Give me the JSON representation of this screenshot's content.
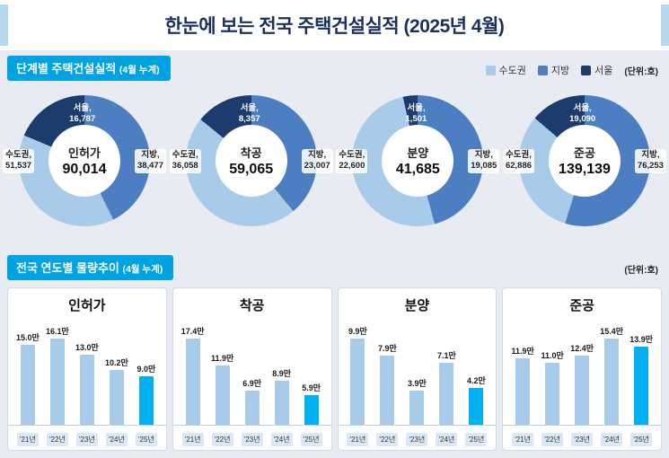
{
  "title": "한눈에 보는 전국 주택건설실적 (2025년 4월)",
  "colors": {
    "sudogwon": "#a7cbe9",
    "jibang": "#4d7ec2",
    "seoul": "#1c3c6e",
    "banner": "#00a3e2",
    "bar_normal": "#a7cbe9",
    "bar_highlight": "#00b0f0"
  },
  "section1": {
    "heading": "단계별 주택건설실적",
    "heading_suffix": "(4월 누계)",
    "unit": "(단위:호)",
    "legend": [
      {
        "label": "수도권"
      },
      {
        "label": "지방"
      },
      {
        "label": "서울"
      }
    ],
    "donuts": [
      {
        "name": "인허가",
        "total": "90,014",
        "seoul_label": "서울,",
        "seoul_value": "16,787",
        "sudogwon_label": "수도권,",
        "sudogwon_value": "51,537",
        "jibang_label": "지방,",
        "jibang_value": "38,477"
      },
      {
        "name": "착공",
        "total": "59,065",
        "seoul_label": "서울,",
        "seoul_value": "8,357",
        "sudogwon_label": "수도권,",
        "sudogwon_value": "36,058",
        "jibang_label": "지방,",
        "jibang_value": "23,007"
      },
      {
        "name": "분양",
        "total": "41,685",
        "seoul_label": "서울,",
        "seoul_value": "1,501",
        "sudogwon_label": "수도권,",
        "sudogwon_value": "22,600",
        "jibang_label": "지방,",
        "jibang_value": "19,085"
      },
      {
        "name": "준공",
        "total": "139,139",
        "seoul_label": "서울,",
        "seoul_value": "19,090",
        "sudogwon_label": "수도권,",
        "sudogwon_value": "62,886",
        "jibang_label": "지방,",
        "jibang_value": "76,253"
      }
    ]
  },
  "section2": {
    "heading": "전국 연도별 물량추이",
    "heading_suffix": "(4월 누계)",
    "unit": "(단위:호)",
    "years": [
      "'21년",
      "'22년",
      "'23년",
      "'24년",
      "'25년"
    ],
    "charts": [
      {
        "title": "인허가",
        "bar_labels": [
          "15.0만",
          "16.1만",
          "13.0만",
          "10.2만",
          "9.0만"
        ],
        "values": [
          15.0,
          16.1,
          13.0,
          10.2,
          9.0
        ]
      },
      {
        "title": "착공",
        "bar_labels": [
          "17.4만",
          "11.9만",
          "6.9만",
          "8.9만",
          "5.9만"
        ],
        "values": [
          17.4,
          11.9,
          6.9,
          8.9,
          5.9
        ]
      },
      {
        "title": "분양",
        "bar_labels": [
          "9.9만",
          "7.9만",
          "3.9만",
          "7.1만",
          "4.2만"
        ],
        "values": [
          9.9,
          7.9,
          3.9,
          7.1,
          4.2
        ]
      },
      {
        "title": "준공",
        "bar_labels": [
          "11.9만",
          "11.0만",
          "12.4만",
          "15.4만",
          "13.9만"
        ],
        "values": [
          11.9,
          11.0,
          12.4,
          15.4,
          13.9
        ]
      }
    ]
  },
  "chart_data": [
    {
      "type": "pie",
      "title": "인허가",
      "total": 90014,
      "segments": [
        {
          "label": "수도권",
          "value": 51537
        },
        {
          "label": "지방",
          "value": 38477
        },
        {
          "label": "서울",
          "value": 16787
        }
      ],
      "unit": "호"
    },
    {
      "type": "pie",
      "title": "착공",
      "total": 59065,
      "segments": [
        {
          "label": "수도권",
          "value": 36058
        },
        {
          "label": "지방",
          "value": 23007
        },
        {
          "label": "서울",
          "value": 8357
        }
      ],
      "unit": "호"
    },
    {
      "type": "pie",
      "title": "분양",
      "total": 41685,
      "segments": [
        {
          "label": "수도권",
          "value": 22600
        },
        {
          "label": "지방",
          "value": 19085
        },
        {
          "label": "서울",
          "value": 1501
        }
      ],
      "unit": "호"
    },
    {
      "type": "pie",
      "title": "준공",
      "total": 139139,
      "segments": [
        {
          "label": "수도권",
          "value": 62886
        },
        {
          "label": "지방",
          "value": 76253
        },
        {
          "label": "서울",
          "value": 19090
        }
      ],
      "unit": "호"
    },
    {
      "type": "bar",
      "title": "인허가",
      "categories": [
        "'21년",
        "'22년",
        "'23년",
        "'24년",
        "'25년"
      ],
      "values": [
        15.0,
        16.1,
        13.0,
        10.2,
        9.0
      ],
      "unit": "만 호",
      "highlight": "'25년"
    },
    {
      "type": "bar",
      "title": "착공",
      "categories": [
        "'21년",
        "'22년",
        "'23년",
        "'24년",
        "'25년"
      ],
      "values": [
        17.4,
        11.9,
        6.9,
        8.9,
        5.9
      ],
      "unit": "만 호",
      "highlight": "'25년"
    },
    {
      "type": "bar",
      "title": "분양",
      "categories": [
        "'21년",
        "'22년",
        "'23년",
        "'24년",
        "'25년"
      ],
      "values": [
        9.9,
        7.9,
        3.9,
        7.1,
        4.2
      ],
      "unit": "만 호",
      "highlight": "'25년"
    },
    {
      "type": "bar",
      "title": "준공",
      "categories": [
        "'21년",
        "'22년",
        "'23년",
        "'24년",
        "'25년"
      ],
      "values": [
        11.9,
        11.0,
        12.4,
        15.4,
        13.9
      ],
      "unit": "만 호",
      "highlight": "'25년"
    }
  ]
}
